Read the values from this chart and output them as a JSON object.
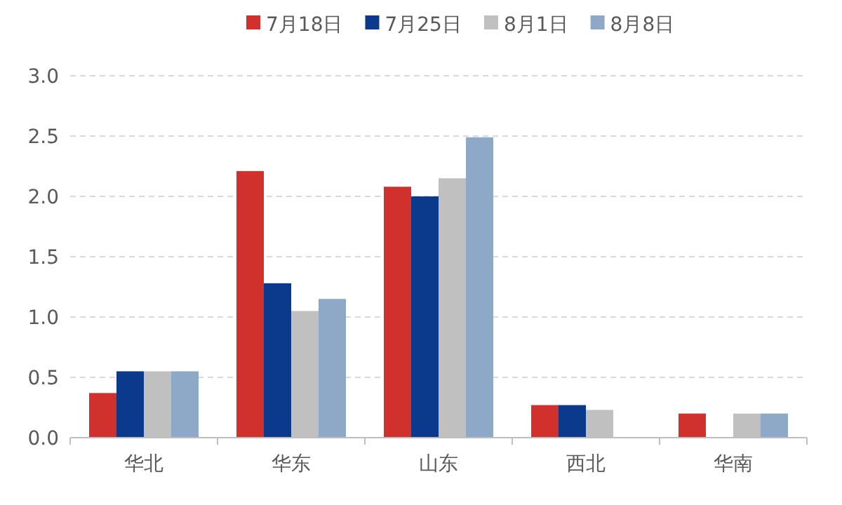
{
  "chart_data": {
    "type": "bar",
    "categories": [
      "华北",
      "华东",
      "山东",
      "西北",
      "华南"
    ],
    "series": [
      {
        "name": "7月18日",
        "color": "#d0312d",
        "values": [
          0.37,
          2.21,
          2.08,
          0.27,
          0.2
        ]
      },
      {
        "name": "7月25日",
        "color": "#0b3a8c",
        "values": [
          0.55,
          1.28,
          2.0,
          0.27,
          null
        ]
      },
      {
        "name": "8月1日",
        "color": "#c0c0c0",
        "values": [
          0.55,
          1.05,
          2.15,
          0.23,
          0.2
        ]
      },
      {
        "name": "8月8日",
        "color": "#8ea9c8",
        "values": [
          0.55,
          1.15,
          2.49,
          null,
          0.2
        ]
      }
    ],
    "ylim": [
      0,
      3.0
    ],
    "yticks": [
      {
        "value": 0,
        "label": "0.0"
      },
      0.5,
      {
        "value": 1,
        "label": "1.0"
      },
      1.5,
      {
        "value": 2,
        "label": "2.0"
      },
      2.5,
      {
        "value": 3,
        "label": "3.0"
      }
    ],
    "grid": "y",
    "legend": "top"
  }
}
